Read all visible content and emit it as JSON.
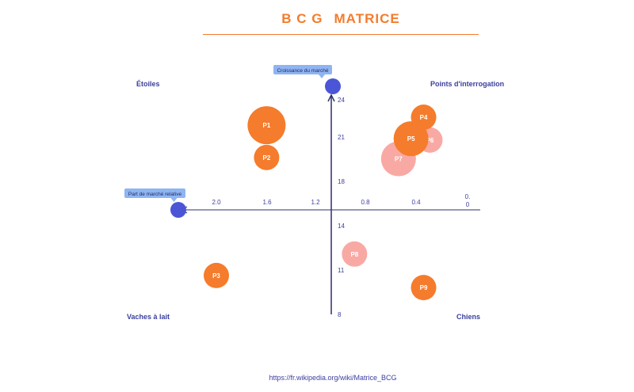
{
  "title": {
    "part1": "B C G",
    "part2": "MATRICE"
  },
  "quadrants": {
    "top_left": "Étoiles",
    "top_right": "Points d'interrogation",
    "bottom_left": "Vaches à lait",
    "bottom_right": "Chiens"
  },
  "source": "https://fr.wikipedia.org/wiki/Matrice_BCG",
  "colors": {
    "accent": "#f47c2c",
    "light": "#f9a9a4",
    "axis": "#2e2f6b",
    "marker": "#4a56d6",
    "label_bg": "#8fb4f2",
    "text": "#3a3f9e"
  },
  "chart_data": {
    "type": "scatter",
    "xlabel": "Part de marché relative",
    "ylabel": "Croissance du marché",
    "x_ticks": [
      "2.0",
      "1.6",
      "1.2",
      "0.8",
      "0.4",
      "0.\n0"
    ],
    "y_ticks": [
      "24",
      "21",
      "18",
      "14",
      "11",
      "8"
    ],
    "xlim": [
      2.1,
      0.0
    ],
    "ylim": [
      8,
      24
    ],
    "points": [
      {
        "label": "P1",
        "x": 1.6,
        "y": 22.1,
        "size": "large",
        "color": "#f47c2c"
      },
      {
        "label": "P2",
        "x": 1.6,
        "y": 19.7,
        "size": "small",
        "color": "#f47c2c"
      },
      {
        "label": "P3",
        "x": 2.0,
        "y": 10.9,
        "size": "small",
        "color": "#f47c2c"
      },
      {
        "label": "P4",
        "x": 0.35,
        "y": 22.7,
        "size": "small",
        "color": "#f47c2c"
      },
      {
        "label": "P5",
        "x": 0.45,
        "y": 21.1,
        "size": "medium",
        "color": "#f47c2c"
      },
      {
        "label": "P6",
        "x": 0.3,
        "y": 21.0,
        "size": "small",
        "color": "#f9a9a4"
      },
      {
        "label": "P7",
        "x": 0.55,
        "y": 19.6,
        "size": "medium",
        "color": "#f9a9a4"
      },
      {
        "label": "P8",
        "x": 0.9,
        "y": 12.5,
        "size": "small",
        "color": "#f9a9a4"
      },
      {
        "label": "P9",
        "x": 0.35,
        "y": 10.0,
        "size": "small",
        "color": "#f47c2c"
      }
    ]
  }
}
